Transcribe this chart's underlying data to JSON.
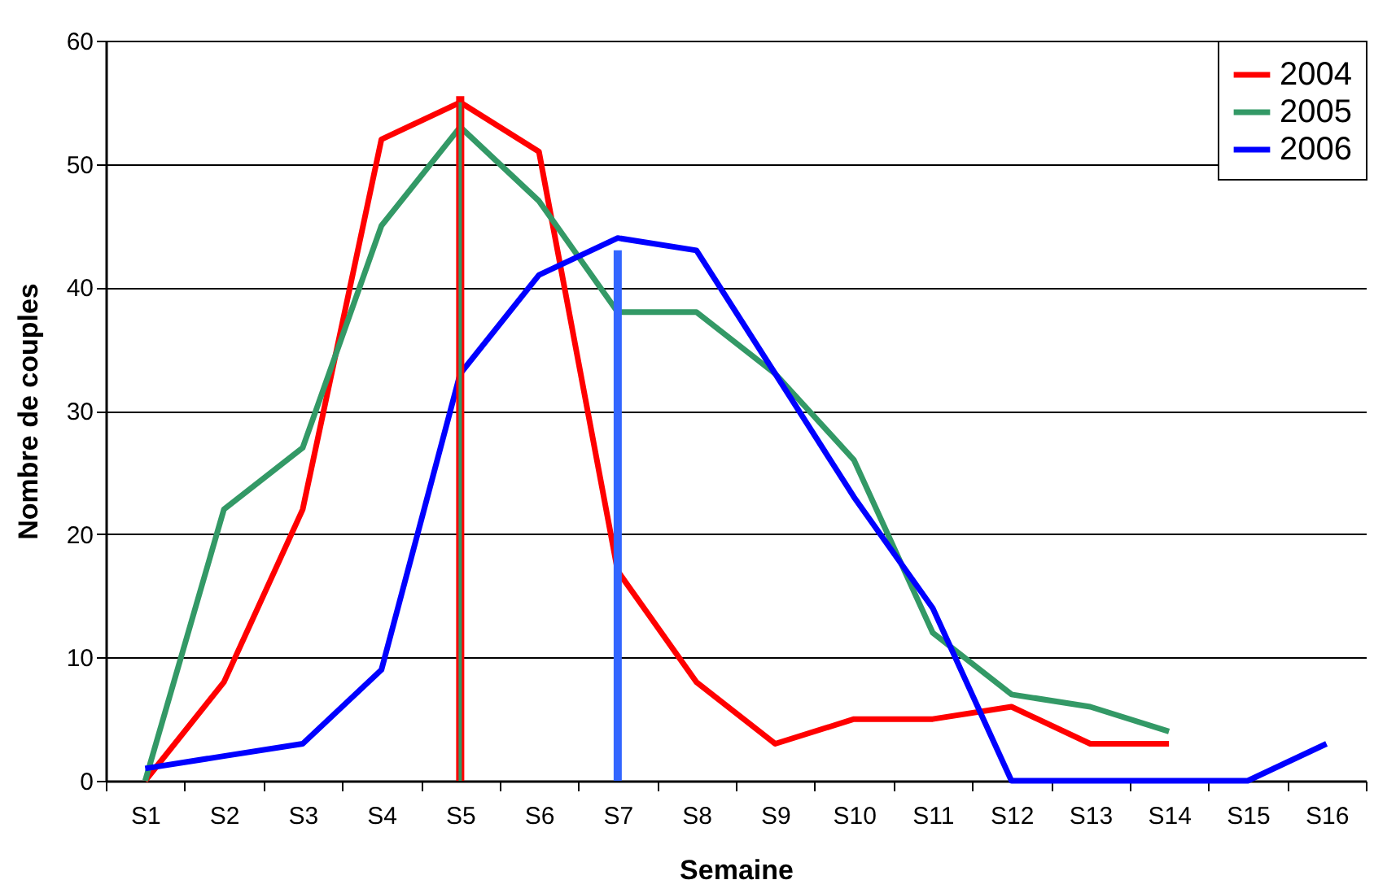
{
  "chart_data": {
    "type": "line",
    "xlabel": "Semaine",
    "ylabel": "Nombre de couples",
    "categories": [
      "S1",
      "S2",
      "S3",
      "S4",
      "S5",
      "S6",
      "S7",
      "S8",
      "S9",
      "S10",
      "S11",
      "S12",
      "S13",
      "S14",
      "S15",
      "S16"
    ],
    "ylim": [
      0,
      60
    ],
    "yticks": [
      0,
      10,
      20,
      30,
      40,
      50,
      60
    ],
    "grid": "y",
    "legend": "top right",
    "marker": "none",
    "line_style": "solid",
    "series": [
      {
        "name": "2004",
        "color": "#ff0000",
        "values": [
          0,
          8,
          22,
          52,
          55,
          51,
          17,
          8,
          3,
          5,
          5,
          6,
          3,
          3,
          null,
          null
        ]
      },
      {
        "name": "2005",
        "color": "#339966",
        "values": [
          0,
          22,
          27,
          45,
          53,
          47,
          38,
          38,
          33,
          26,
          12,
          7,
          6,
          4,
          null,
          null
        ]
      },
      {
        "name": "2006",
        "color": "#0000ff",
        "values": [
          1,
          2,
          3,
          9,
          33,
          41,
          44,
          43,
          33,
          23,
          14,
          0,
          0,
          0,
          0,
          3
        ]
      },
      {
        "color": "#ff0000",
        "x": [
          "S5",
          "S5"
        ],
        "values": [
          0,
          55.5
        ]
      },
      {
        "color": "#339966",
        "x": [
          "S5",
          "S5"
        ],
        "values": [
          0,
          55
        ]
      },
      {
        "color": "#3366ff",
        "x": [
          "S7",
          "S7"
        ],
        "values": [
          0,
          43
        ]
      }
    ]
  }
}
